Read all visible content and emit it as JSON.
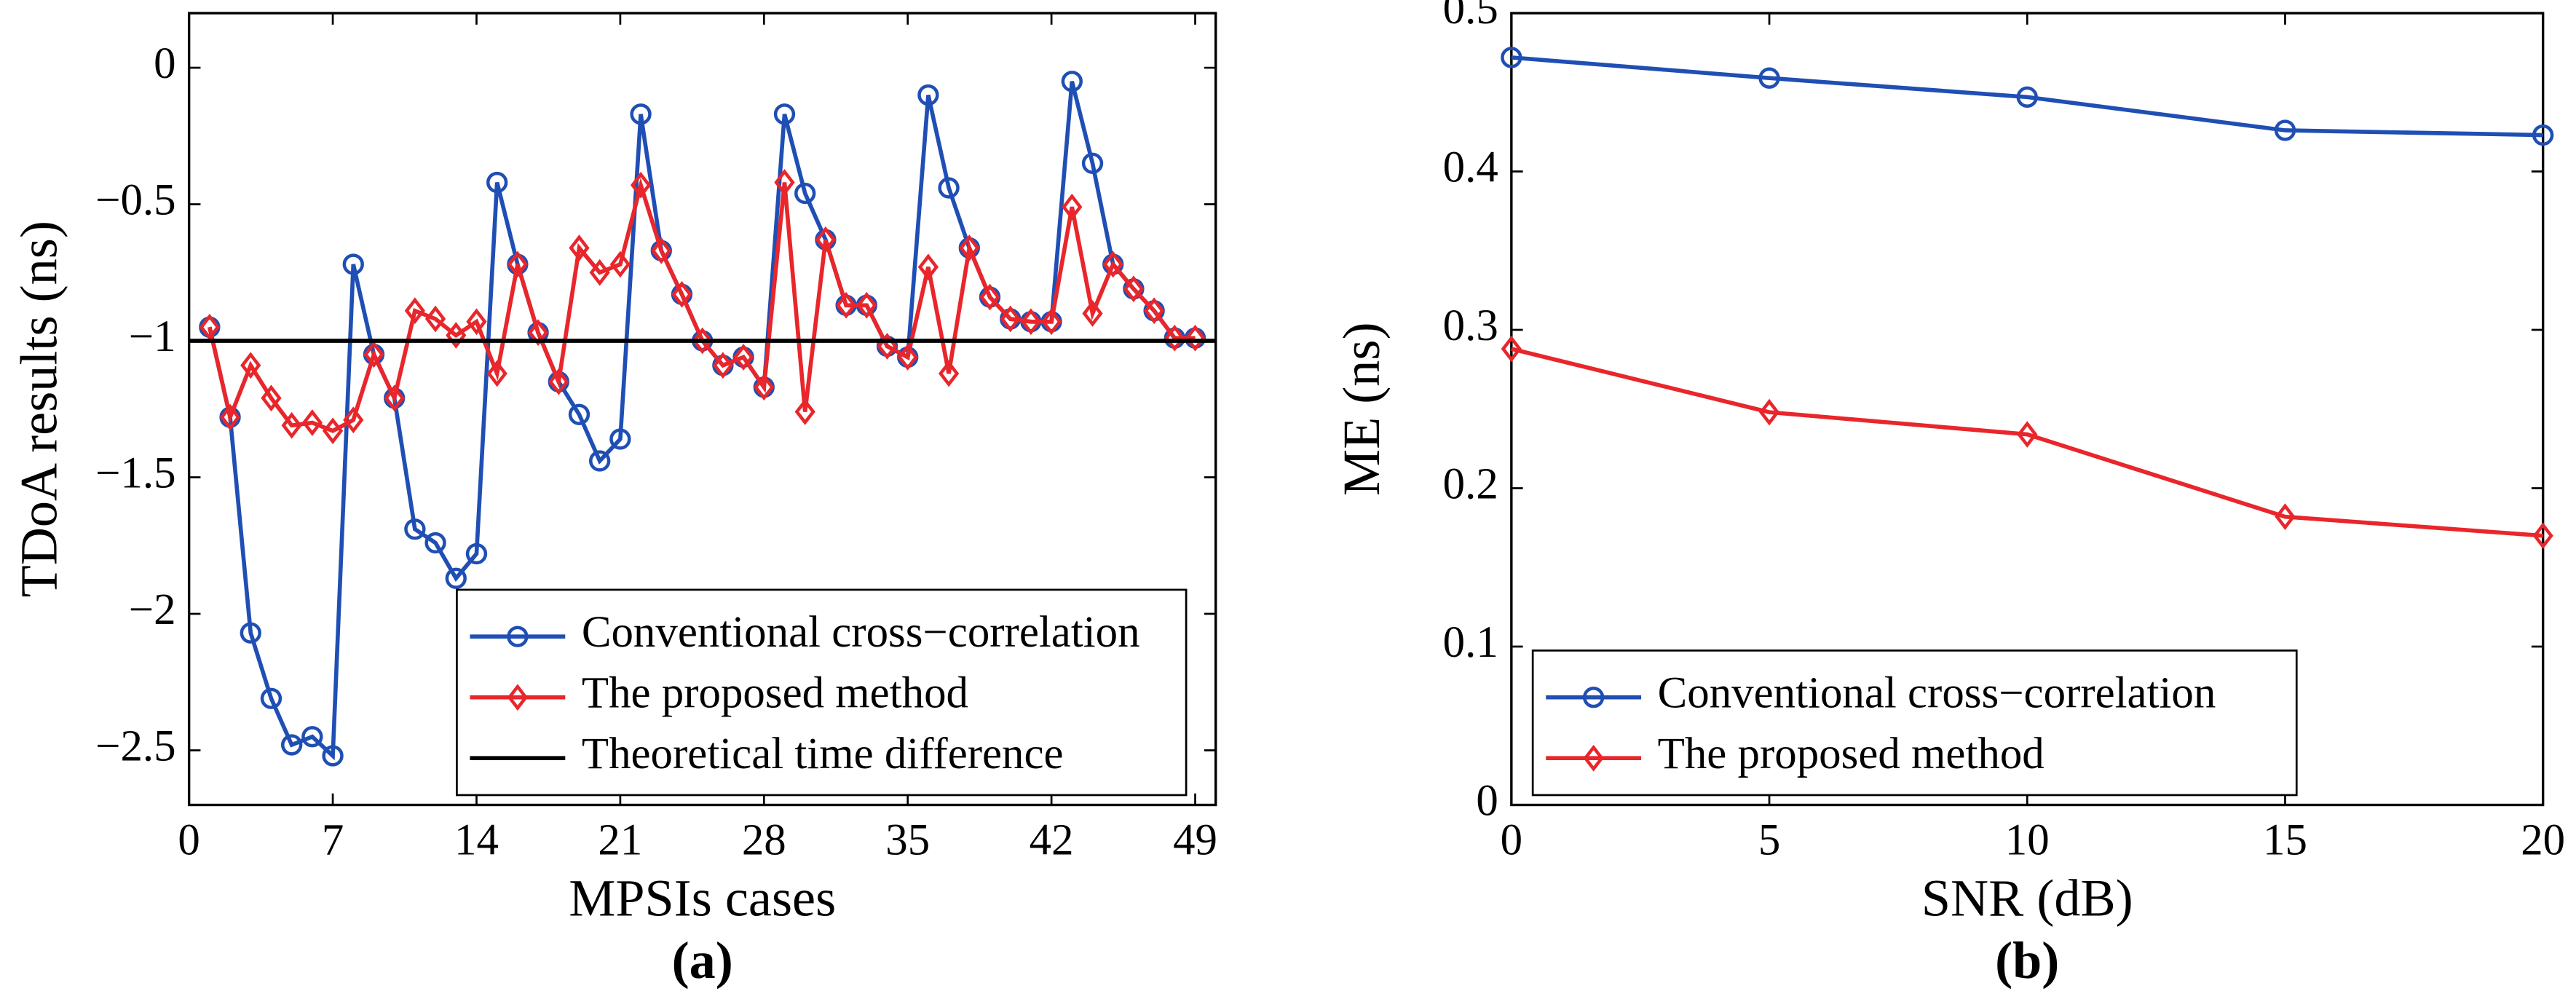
{
  "chart_data": [
    {
      "type": "line",
      "panel_label": "(a)",
      "xlabel": "MPSIs cases",
      "ylabel": "TDoA results (ns)",
      "xlim": [
        0,
        50
      ],
      "xticks": [
        0,
        7,
        14,
        21,
        28,
        35,
        42,
        49
      ],
      "ylim": [
        -2.7,
        0.2
      ],
      "yticks": [
        {
          "value": -2.5,
          "label": "−2.5"
        },
        {
          "value": -2,
          "label": "−2"
        },
        {
          "value": -1.5,
          "label": "−1.5"
        },
        {
          "value": -1,
          "label": "−1"
        },
        {
          "value": -0.5,
          "label": "−0.5"
        },
        0
      ],
      "legend": "lower right",
      "series": [
        {
          "name": "Conventional cross−correlation",
          "color": "#1f4fb4",
          "marker": "circle",
          "x": [
            1,
            2,
            3,
            4,
            5,
            6,
            7,
            8,
            9,
            10,
            11,
            12,
            13,
            14,
            15,
            16,
            17,
            18,
            19,
            20,
            21,
            22,
            23,
            24,
            25,
            26,
            27,
            28,
            29,
            30,
            31,
            32,
            33,
            34,
            35,
            36,
            37,
            38,
            39,
            40,
            41,
            42,
            43,
            44,
            45,
            46,
            47,
            48,
            49
          ],
          "values": [
            -0.95,
            -1.28,
            -2.07,
            -2.31,
            -2.48,
            -2.45,
            -2.52,
            -0.72,
            -1.05,
            -1.21,
            -1.69,
            -1.74,
            -1.87,
            -1.78,
            -0.42,
            -0.72,
            -0.97,
            -1.15,
            -1.27,
            -1.44,
            -1.36,
            -0.17,
            -0.67,
            -0.83,
            -1.0,
            -1.09,
            -1.06,
            -1.17,
            -0.17,
            -0.46,
            -0.63,
            -0.87,
            -0.87,
            -1.02,
            -1.06,
            -0.1,
            -0.44,
            -0.66,
            -0.84,
            -0.92,
            -0.93,
            -0.93,
            -0.05,
            -0.35,
            -0.72,
            -0.81,
            -0.89,
            -0.99,
            -0.99
          ]
        },
        {
          "name": "The proposed method",
          "color": "#e8262b",
          "marker": "diamond",
          "x": [
            1,
            2,
            3,
            4,
            5,
            6,
            7,
            8,
            9,
            10,
            11,
            12,
            13,
            14,
            15,
            16,
            17,
            18,
            19,
            20,
            21,
            22,
            23,
            24,
            25,
            26,
            27,
            28,
            29,
            30,
            31,
            32,
            33,
            34,
            35,
            36,
            37,
            38,
            39,
            40,
            41,
            42,
            43,
            44,
            45,
            46,
            47,
            48,
            49
          ],
          "values": [
            -0.95,
            -1.28,
            -1.09,
            -1.21,
            -1.31,
            -1.3,
            -1.33,
            -1.29,
            -1.05,
            -1.21,
            -0.89,
            -0.92,
            -0.98,
            -0.93,
            -1.12,
            -0.72,
            -0.97,
            -1.15,
            -0.66,
            -0.75,
            -0.72,
            -0.43,
            -0.67,
            -0.83,
            -1.0,
            -1.09,
            -1.06,
            -1.17,
            -0.42,
            -1.26,
            -0.63,
            -0.87,
            -0.87,
            -1.02,
            -1.06,
            -0.73,
            -1.12,
            -0.66,
            -0.84,
            -0.92,
            -0.93,
            -0.93,
            -0.51,
            -0.9,
            -0.72,
            -0.81,
            -0.89,
            -0.99,
            -0.99
          ]
        },
        {
          "name": "Theoretical time difference",
          "color": "#000000",
          "marker": "none",
          "x": [
            0,
            50
          ],
          "values": [
            -1,
            -1
          ]
        }
      ]
    },
    {
      "type": "line",
      "panel_label": "(b)",
      "xlabel": "SNR (dB)",
      "ylabel": "ME (ns)",
      "xlim": [
        0,
        20
      ],
      "xticks": [
        0,
        5,
        10,
        15,
        20
      ],
      "ylim": [
        0,
        0.5
      ],
      "yticks": [
        0,
        0.1,
        0.2,
        0.3,
        0.4,
        0.5
      ],
      "legend": "lower left",
      "series": [
        {
          "name": "Conventional cross−correlation",
          "color": "#1f4fb4",
          "marker": "circle",
          "x": [
            0,
            5,
            10,
            15,
            20
          ],
          "values": [
            0.472,
            0.459,
            0.447,
            0.426,
            0.423
          ]
        },
        {
          "name": "The proposed method",
          "color": "#e8262b",
          "marker": "diamond",
          "x": [
            0,
            5,
            10,
            15,
            20
          ],
          "values": [
            0.288,
            0.248,
            0.234,
            0.182,
            0.17
          ]
        }
      ]
    }
  ]
}
